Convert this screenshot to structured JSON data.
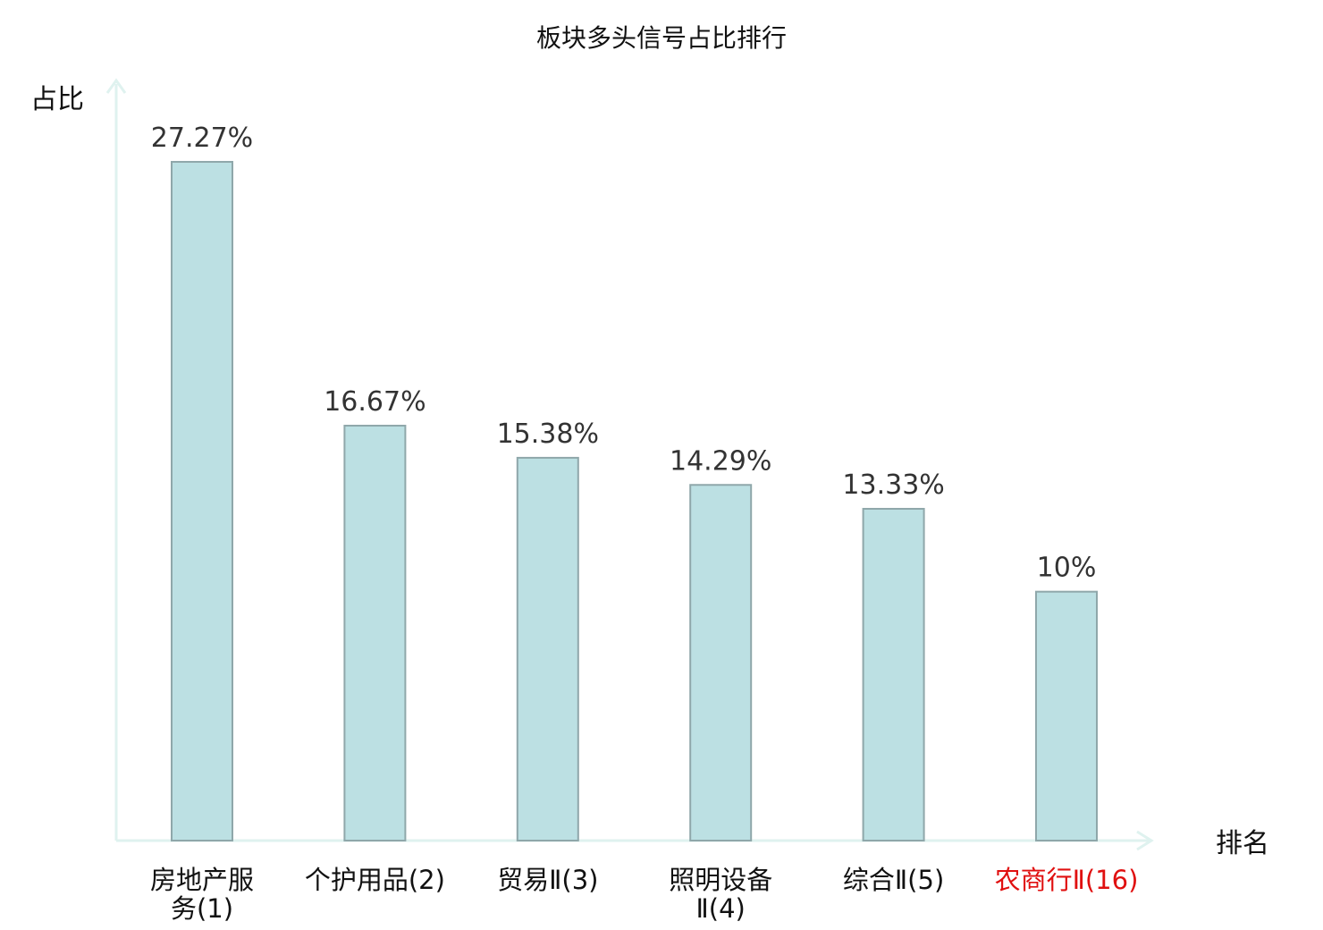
{
  "chart_data": {
    "type": "bar",
    "title": "板块多头信号占比排行",
    "xlabel": "排名",
    "ylabel": "占比",
    "ylim": [
      0,
      30
    ],
    "grid": false,
    "categories": [
      {
        "line1": "房地产服",
        "line2": "务(1)",
        "highlight": false
      },
      {
        "line1": "个护用品(2)",
        "line2": "",
        "highlight": false
      },
      {
        "line1": "贸易Ⅱ(3)",
        "line2": "",
        "highlight": false
      },
      {
        "line1": "照明设备",
        "line2": "Ⅱ(4)",
        "highlight": false
      },
      {
        "line1": "综合Ⅱ(5)",
        "line2": "",
        "highlight": false
      },
      {
        "line1": "农商行Ⅱ(16)",
        "line2": "",
        "highlight": true
      }
    ],
    "values": [
      27.27,
      16.67,
      15.38,
      14.29,
      13.33,
      10
    ],
    "value_labels": [
      "27.27%",
      "16.67%",
      "15.38%",
      "14.29%",
      "13.33%",
      "10%"
    ],
    "colors": {
      "bar_fill": "#BCE0E3",
      "bar_stroke": "#8FA7AA",
      "axis": "#DFF2EF",
      "highlight_text": "#E01010",
      "normal_text": "#111111"
    }
  }
}
